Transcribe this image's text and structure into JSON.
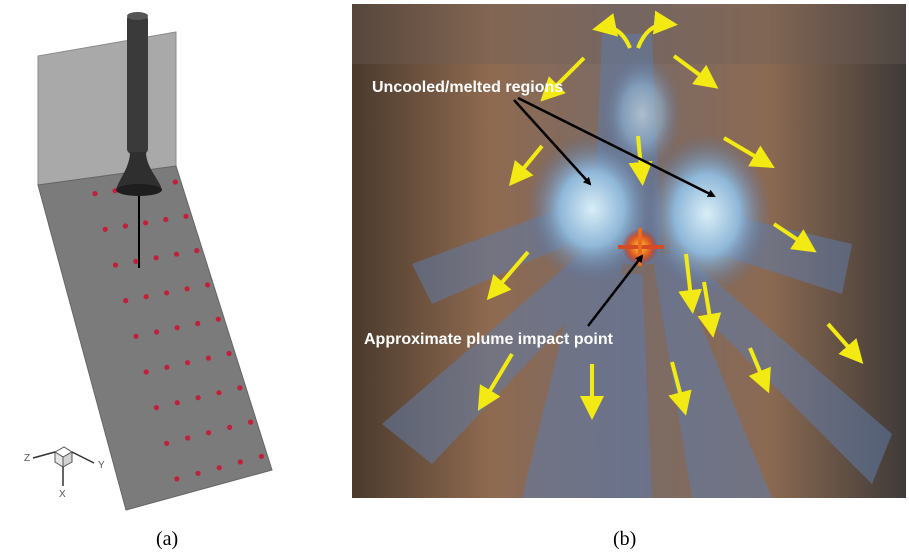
{
  "panel_a": {
    "caption": "(a)",
    "axes": {
      "z": "Z",
      "y": "Y",
      "x": "X"
    }
  },
  "panel_b": {
    "caption": "(b)",
    "annotations": {
      "uncooled": "Uncooled/melted regions",
      "impact": "Approximate plume impact point"
    }
  },
  "colors": {
    "plate": "#7b7b7b",
    "probe_dots": "#c21f3a",
    "flow_arrows": "#f2ea12",
    "annotation_text": "#ffffff"
  }
}
